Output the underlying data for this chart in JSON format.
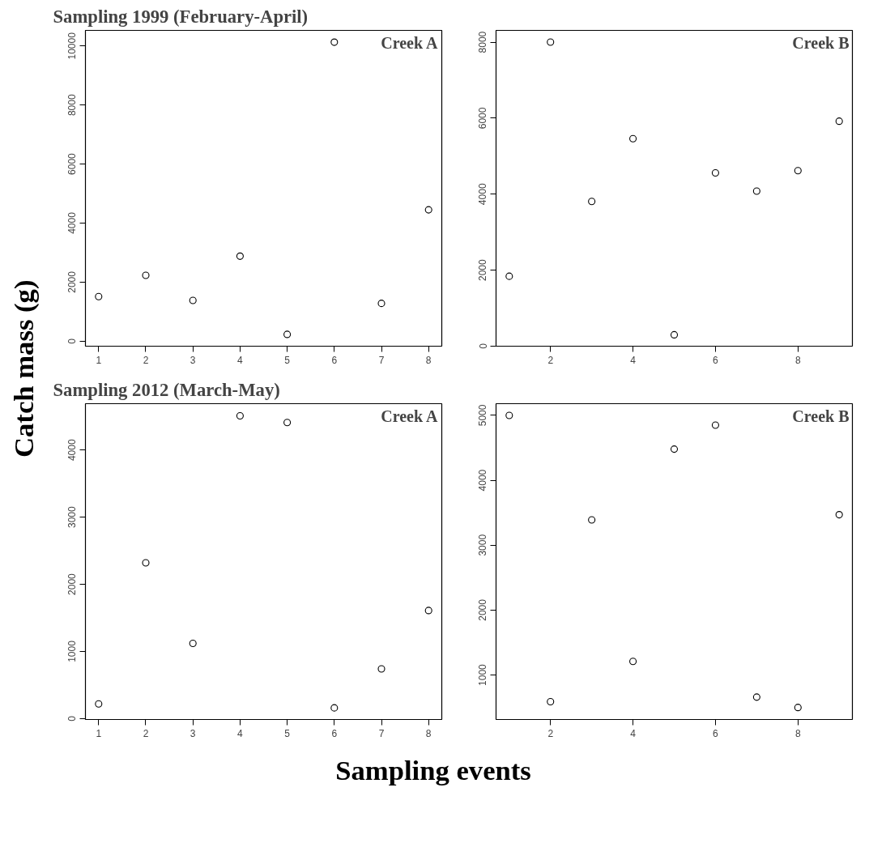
{
  "chart_data": [
    {
      "type": "scatter",
      "title": "Sampling 1999 (February-April)",
      "ylabel": "Catch mass (g)",
      "annotations": [
        "Creek A"
      ],
      "marker": "circle",
      "grid": false,
      "x": [
        1,
        2,
        3,
        4,
        5,
        6,
        7,
        8
      ],
      "xlim": [
        0.72,
        8.28
      ],
      "xticks": [
        1,
        2,
        3,
        4,
        5,
        6,
        7,
        8
      ],
      "ylim": [
        -170,
        10530
      ],
      "yticks": [
        0,
        2000,
        4000,
        6000,
        8000,
        10000
      ],
      "series": [
        {
          "color": "#000000",
          "values": [
            1510,
            2230,
            1380,
            2880,
            230,
            10130,
            1280,
            4450
          ]
        }
      ]
    },
    {
      "type": "scatter",
      "annotations": [
        "Creek B"
      ],
      "marker": "circle",
      "grid": false,
      "x": [
        1,
        2,
        3,
        4,
        5,
        6,
        7,
        8,
        9
      ],
      "xlim": [
        0.68,
        9.32
      ],
      "xticks": [
        2,
        4,
        6,
        8
      ],
      "ylim": [
        0,
        8310
      ],
      "yticks": [
        0,
        2000,
        4000,
        6000,
        8000
      ],
      "series": [
        {
          "color": "#000000",
          "values": [
            1840,
            8000,
            3810,
            5460,
            300,
            4560,
            4080,
            4620,
            5920
          ]
        }
      ]
    },
    {
      "type": "scatter",
      "title": "Sampling 2012 (March-May)",
      "xlabel": "Sampling events",
      "annotations": [
        "Creek A"
      ],
      "marker": "circle",
      "grid": false,
      "x": [
        1,
        2,
        3,
        4,
        5,
        6,
        7,
        8
      ],
      "xlim": [
        0.72,
        8.28
      ],
      "xticks": [
        1,
        2,
        3,
        4,
        5,
        6,
        7,
        8
      ],
      "ylim": [
        -13,
        4690
      ],
      "yticks": [
        0,
        1000,
        2000,
        3000,
        4000
      ],
      "series": [
        {
          "color": "#000000",
          "values": [
            220,
            2320,
            1120,
            4510,
            4410,
            160,
            740,
            1610
          ]
        }
      ]
    },
    {
      "type": "scatter",
      "annotations": [
        "Creek B"
      ],
      "marker": "circle",
      "grid": false,
      "x": [
        1,
        2,
        3,
        4,
        5,
        6,
        7,
        8,
        9
      ],
      "xlim": [
        0.68,
        9.32
      ],
      "xticks": [
        2,
        4,
        6,
        8
      ],
      "ylim": [
        315,
        5180
      ],
      "yticks": [
        1000,
        2000,
        3000,
        4000,
        5000
      ],
      "series": [
        {
          "color": "#000000",
          "values": [
            5000,
            590,
            3390,
            1210,
            4480,
            4850,
            660,
            500,
            3470
          ]
        }
      ]
    }
  ]
}
